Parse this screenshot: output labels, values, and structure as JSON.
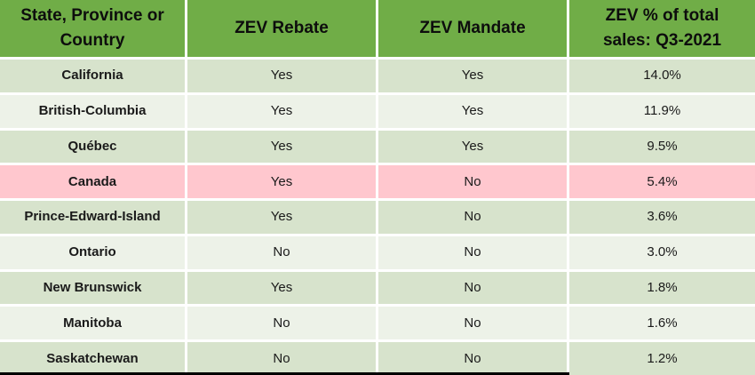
{
  "colors": {
    "header_bg": "#70AD47",
    "row_dark": "#D7E3CC",
    "row_light": "#EDF2E8",
    "highlight_pink": "#FFC7CE",
    "text": "#1A1A1A"
  },
  "chart_data": {
    "type": "table",
    "columns": [
      "State, Province or Country",
      "ZEV Rebate",
      "ZEV Mandate",
      "ZEV % of total sales: Q3-2021"
    ],
    "rows": [
      {
        "region": "California",
        "zev_rebate": "Yes",
        "zev_mandate": "Yes",
        "zev_share": "14.0%",
        "highlighted": false
      },
      {
        "region": "British-Columbia",
        "zev_rebate": "Yes",
        "zev_mandate": "Yes",
        "zev_share": "11.9%",
        "highlighted": false
      },
      {
        "region": "Québec",
        "zev_rebate": "Yes",
        "zev_mandate": "Yes",
        "zev_share": "9.5%",
        "highlighted": false
      },
      {
        "region": "Canada",
        "zev_rebate": "Yes",
        "zev_mandate": "No",
        "zev_share": "5.4%",
        "highlighted": true
      },
      {
        "region": "Prince-Edward-Island",
        "zev_rebate": "Yes",
        "zev_mandate": "No",
        "zev_share": "3.6%",
        "highlighted": false
      },
      {
        "region": "Ontario",
        "zev_rebate": "No",
        "zev_mandate": "No",
        "zev_share": "3.0%",
        "highlighted": false
      },
      {
        "region": "New Brunswick",
        "zev_rebate": "Yes",
        "zev_mandate": "No",
        "zev_share": "1.8%",
        "highlighted": false
      },
      {
        "region": "Manitoba",
        "zev_rebate": "No",
        "zev_mandate": "No",
        "zev_share": "1.6%",
        "highlighted": false
      },
      {
        "region": "Saskatchewan",
        "zev_rebate": "No",
        "zev_mandate": "No",
        "zev_share": "1.2%",
        "highlighted": false
      }
    ]
  }
}
